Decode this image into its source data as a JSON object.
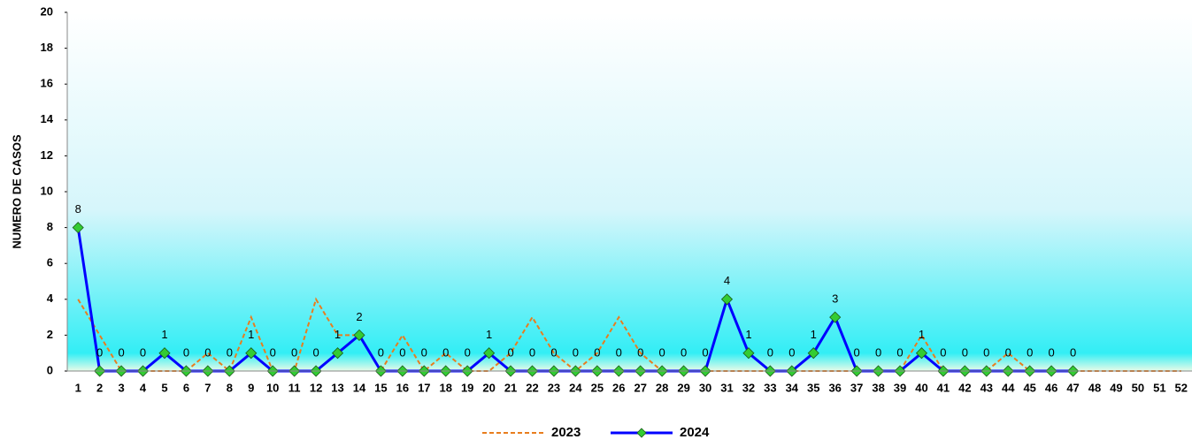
{
  "chart_data": {
    "type": "line",
    "y_label": "NUMERO DE CASOS",
    "categories": [
      "1",
      "2",
      "3",
      "4",
      "5",
      "6",
      "7",
      "8",
      "9",
      "10",
      "11",
      "12",
      "13",
      "14",
      "15",
      "16",
      "17",
      "18",
      "19",
      "20",
      "21",
      "22",
      "23",
      "24",
      "25",
      "26",
      "27",
      "28",
      "29",
      "30",
      "31",
      "32",
      "33",
      "34",
      "35",
      "36",
      "37",
      "38",
      "39",
      "40",
      "41",
      "42",
      "43",
      "44",
      "45",
      "46",
      "47",
      "48",
      "49",
      "50",
      "51",
      "52"
    ],
    "series": [
      {
        "name": "2023",
        "color": "#e87d1e",
        "dashed": true,
        "markers": false,
        "data_labels": false,
        "values": [
          4,
          2,
          0,
          0,
          0,
          0,
          1,
          0,
          3,
          0,
          0,
          4,
          2,
          2,
          0,
          2,
          0,
          1,
          0,
          0,
          1,
          3,
          1,
          0,
          1,
          3,
          1,
          0,
          0,
          0,
          0,
          0,
          0,
          0,
          0,
          0,
          0,
          0,
          0,
          2,
          0,
          0,
          0,
          1,
          0,
          0,
          0,
          0,
          0,
          0,
          0,
          0
        ]
      },
      {
        "name": "2024",
        "color": "#0000ff",
        "marker_color": "#33cc33",
        "dashed": false,
        "markers": true,
        "data_labels": true,
        "values": [
          8,
          0,
          0,
          0,
          1,
          0,
          0,
          0,
          1,
          0,
          0,
          0,
          1,
          2,
          0,
          0,
          0,
          0,
          0,
          1,
          0,
          0,
          0,
          0,
          0,
          0,
          0,
          0,
          0,
          0,
          4,
          1,
          0,
          0,
          1,
          3,
          0,
          0,
          0,
          1,
          0,
          0,
          0,
          0,
          0,
          0,
          0,
          null,
          null,
          null,
          null,
          null
        ]
      }
    ],
    "ylim": [
      0,
      20
    ],
    "yticks": [
      0,
      2,
      4,
      6,
      8,
      10,
      12,
      14,
      16,
      18,
      20
    ],
    "legend": "bottom"
  }
}
